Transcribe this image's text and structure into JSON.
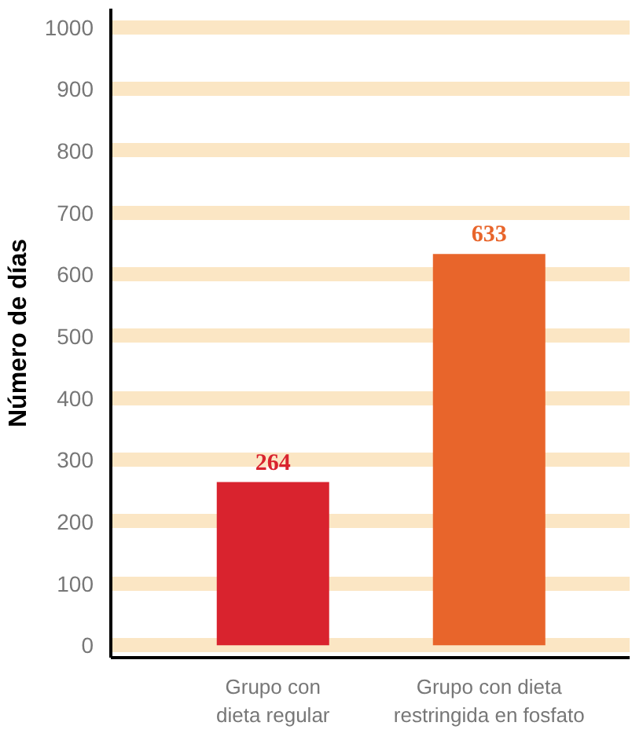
{
  "chart_data": {
    "type": "bar",
    "ylabel": "Número de días",
    "categories": [
      "Grupo con\ndieta regular",
      "Grupo con dieta\nrestringida en fosfato"
    ],
    "values": [
      264,
      633
    ],
    "colors": [
      "#d9232e",
      "#e8652b"
    ],
    "data_labels": true,
    "ylim": [
      -20,
      1030
    ],
    "yticks": [
      0,
      100,
      200,
      300,
      400,
      500,
      600,
      700,
      800,
      900,
      1000
    ],
    "grid": "y"
  }
}
